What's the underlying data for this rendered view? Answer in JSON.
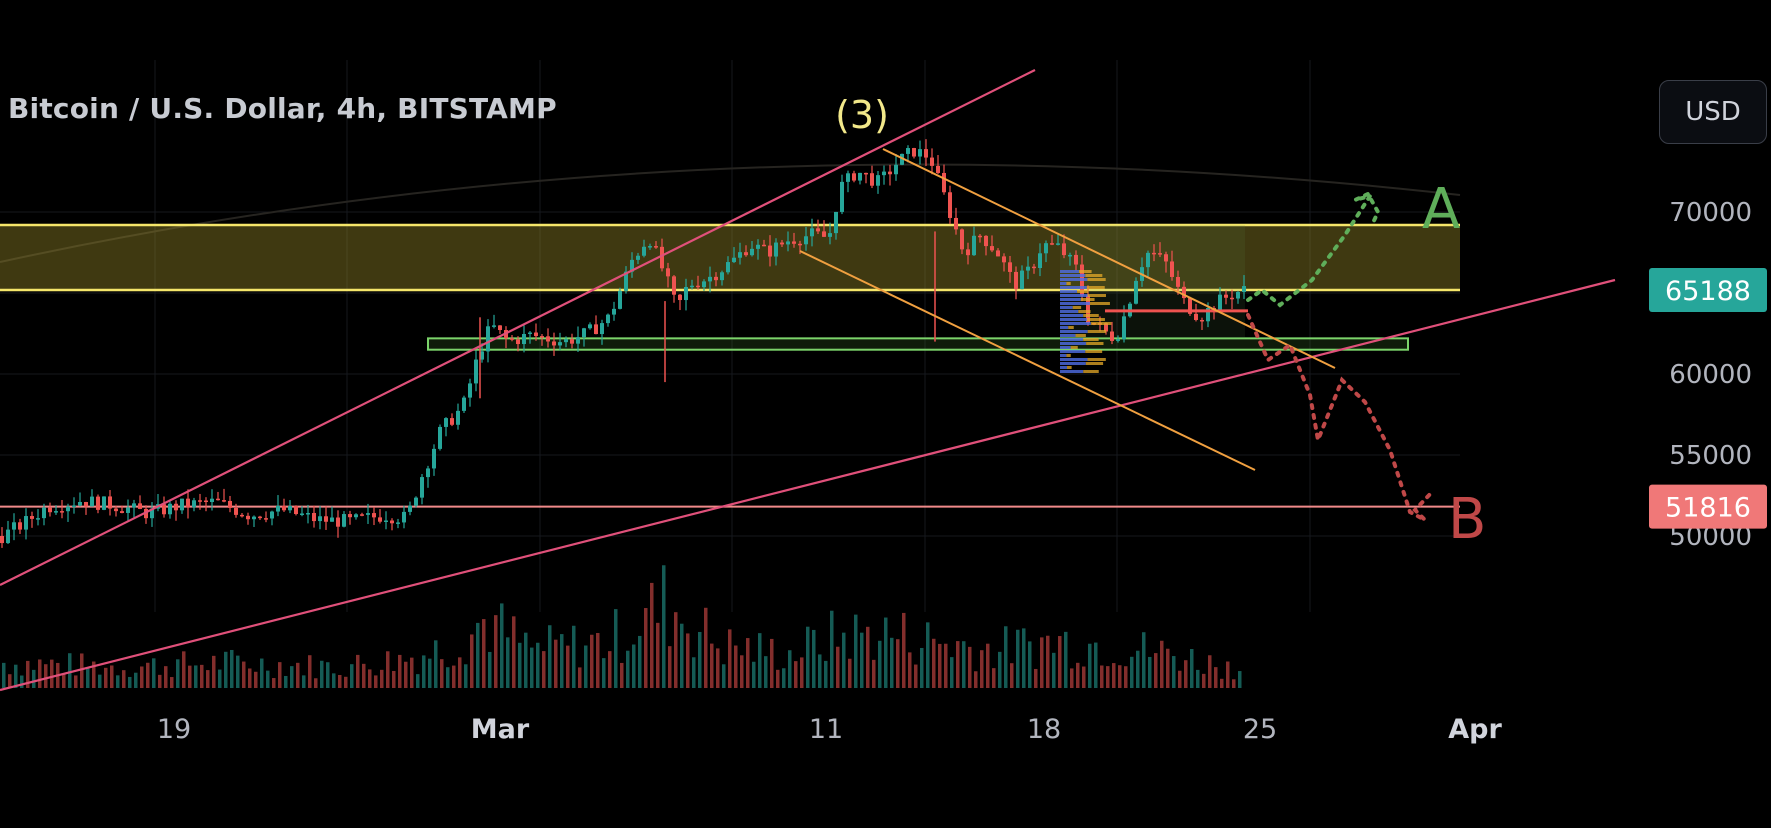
{
  "header": {
    "title": "Bitcoin / U.S. Dollar, 4h, BITSTAMP",
    "currency_button": "USD"
  },
  "colors": {
    "background": "#000000",
    "up": "#26a69a",
    "down": "#ef5350",
    "resistance_zone": "#f5e66a",
    "support_zone": "#7bd36a",
    "channel": "#f0a040",
    "trendline": "#e0507a",
    "scenario_a": "#5fae5a",
    "scenario_b": "#c04848",
    "price_tag_current": "#26a69a",
    "price_tag_level": "#f07878"
  },
  "chart_data": {
    "type": "candlestick",
    "symbol": "Bitcoin / U.S. Dollar",
    "interval": "4h",
    "exchange": "BITSTAMP",
    "y_axis": {
      "ticks": [
        50000,
        55000,
        60000,
        65000,
        70000
      ],
      "labels": [
        "50000",
        "55000",
        "60000",
        "70000"
      ],
      "range": [
        45000,
        78000
      ]
    },
    "x_axis": {
      "labels": [
        {
          "text": "19",
          "bold": false
        },
        {
          "text": "Mar",
          "bold": true
        },
        {
          "text": "11",
          "bold": false
        },
        {
          "text": "18",
          "bold": false
        },
        {
          "text": "25",
          "bold": false
        },
        {
          "text": "Apr",
          "bold": true
        }
      ]
    },
    "price_tags": [
      {
        "name": "current",
        "value": 65188,
        "label": "65188"
      },
      {
        "name": "level",
        "value": 51816,
        "label": "51816"
      }
    ],
    "resistance_zone": {
      "low": 65188,
      "high": 69200
    },
    "support_zone": {
      "low": 61500,
      "high": 62200
    },
    "wave_label": "(3)",
    "scenarios": [
      {
        "label": "A",
        "direction": "up",
        "target": 72500
      },
      {
        "label": "B",
        "direction": "down",
        "target": 55000
      }
    ],
    "price_path": [
      [
        0,
        50000
      ],
      [
        20,
        50800
      ],
      [
        40,
        51800
      ],
      [
        70,
        52200
      ],
      [
        100,
        51900
      ],
      [
        130,
        51400
      ],
      [
        160,
        51900
      ],
      [
        190,
        52100
      ],
      [
        220,
        51300
      ],
      [
        250,
        51600
      ],
      [
        280,
        51000
      ],
      [
        310,
        50900
      ],
      [
        340,
        51300
      ],
      [
        360,
        51100
      ],
      [
        372,
        53500
      ],
      [
        390,
        56500
      ],
      [
        410,
        58000
      ],
      [
        425,
        61500
      ],
      [
        435,
        63000
      ],
      [
        450,
        62000
      ],
      [
        470,
        62400
      ],
      [
        500,
        62000
      ],
      [
        520,
        62500
      ],
      [
        540,
        63500
      ],
      [
        560,
        67000
      ],
      [
        575,
        68500
      ],
      [
        590,
        66000
      ],
      [
        600,
        64000
      ],
      [
        610,
        65500
      ],
      [
        630,
        66000
      ],
      [
        650,
        67000
      ],
      [
        665,
        68000
      ],
      [
        680,
        67500
      ],
      [
        700,
        68300
      ],
      [
        720,
        68600
      ],
      [
        735,
        68400
      ],
      [
        745,
        71500
      ],
      [
        760,
        72500
      ],
      [
        780,
        71800
      ],
      [
        795,
        73000
      ],
      [
        810,
        73800
      ],
      [
        825,
        73400
      ],
      [
        840,
        70500
      ],
      [
        855,
        67500
      ],
      [
        870,
        68600
      ],
      [
        885,
        67500
      ],
      [
        900,
        65500
      ],
      [
        915,
        66500
      ],
      [
        925,
        68000
      ],
      [
        940,
        67800
      ],
      [
        955,
        66500
      ],
      [
        965,
        63500
      ],
      [
        980,
        62600
      ],
      [
        990,
        62200
      ],
      [
        1000,
        64000
      ],
      [
        1010,
        66500
      ],
      [
        1020,
        67600
      ],
      [
        1035,
        66800
      ],
      [
        1050,
        64500
      ],
      [
        1065,
        63500
      ],
      [
        1080,
        64400
      ],
      [
        1095,
        65000
      ],
      [
        1105,
        65200
      ]
    ],
    "volume_path": [
      [
        0,
        0.3
      ],
      [
        100,
        0.25
      ],
      [
        200,
        0.3
      ],
      [
        300,
        0.25
      ],
      [
        360,
        0.35
      ],
      [
        400,
        0.5
      ],
      [
        430,
        0.8
      ],
      [
        470,
        0.45
      ],
      [
        540,
        0.55
      ],
      [
        590,
        1.0
      ],
      [
        640,
        0.5
      ],
      [
        700,
        0.4
      ],
      [
        740,
        0.6
      ],
      [
        780,
        0.65
      ],
      [
        830,
        0.55
      ],
      [
        880,
        0.45
      ],
      [
        940,
        0.55
      ],
      [
        990,
        0.5
      ],
      [
        1040,
        0.4
      ],
      [
        1105,
        0.2
      ]
    ]
  }
}
